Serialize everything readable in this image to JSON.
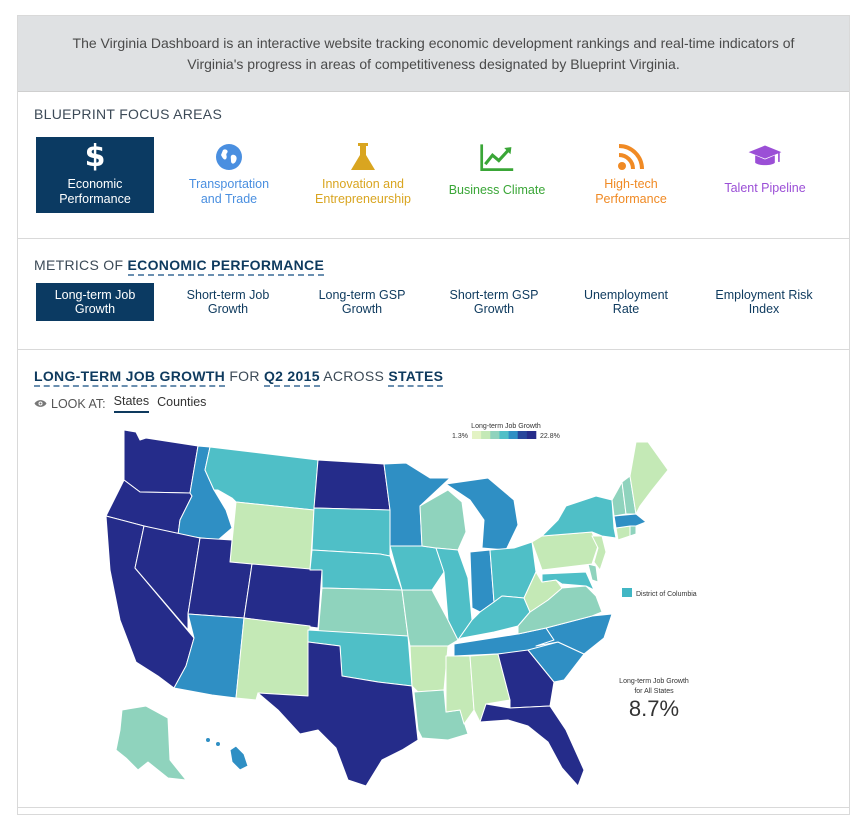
{
  "intro": {
    "text": "The Virginia Dashboard is an interactive website tracking economic development rankings and real-time indicators of Virginia's progress in areas of competitiveness designated by Blueprint Virginia."
  },
  "focus": {
    "title": "BLUEPRINT FOCUS AREAS",
    "items": [
      {
        "label": "Economic Performance",
        "icon": "dollar-icon",
        "color": "#ffffff",
        "active": true
      },
      {
        "label": "Transportation and Trade",
        "icon": "globe-icon",
        "color": "#4a8fe0",
        "active": false
      },
      {
        "label": "Innovation and Entrepreneurship",
        "icon": "flask-icon",
        "color": "#d9a520",
        "active": false
      },
      {
        "label": "Business Climate",
        "icon": "chart-up-icon",
        "color": "#3aa637",
        "active": false
      },
      {
        "label": "High-tech Performance",
        "icon": "rss-icon",
        "color": "#f08a24",
        "active": false
      },
      {
        "label": "Talent Pipeline",
        "icon": "graduation-cap-icon",
        "color": "#9b4fd6",
        "active": false
      }
    ]
  },
  "metrics": {
    "title_prefix": "METRICS OF",
    "title_highlight": "ECONOMIC PERFORMANCE",
    "items": [
      {
        "label": "Long-term Job Growth",
        "active": true
      },
      {
        "label": "Short-term Job Growth",
        "active": false
      },
      {
        "label": "Long-term GSP Growth",
        "active": false
      },
      {
        "label": "Short-term GSP Growth",
        "active": false
      },
      {
        "label": "Unemployment Rate",
        "active": false
      },
      {
        "label": "Employment Risk Index",
        "active": false
      }
    ]
  },
  "map": {
    "title_metric": "LONG-TERM JOB GROWTH",
    "title_for": "FOR",
    "title_period": "Q2 2015",
    "title_across": "ACROSS",
    "title_geo": "STATES",
    "lookat_label": "LOOK AT:",
    "lookat_options": [
      {
        "label": "States",
        "selected": true
      },
      {
        "label": "Counties",
        "selected": false
      }
    ],
    "legend": {
      "title": "Long-term Job Growth",
      "min": "1.3%",
      "max": "22.8%",
      "colors": [
        "#e3f3c4",
        "#c4e9b6",
        "#8fd3bd",
        "#4fbfc7",
        "#2f8fc4",
        "#27469c",
        "#252c8a"
      ]
    },
    "dc_label": "District of Columbia",
    "dc_color": "#41b6c4",
    "summary_label": [
      "Long-term Job Growth",
      "for All States"
    ],
    "summary_value": "8.7%"
  }
}
